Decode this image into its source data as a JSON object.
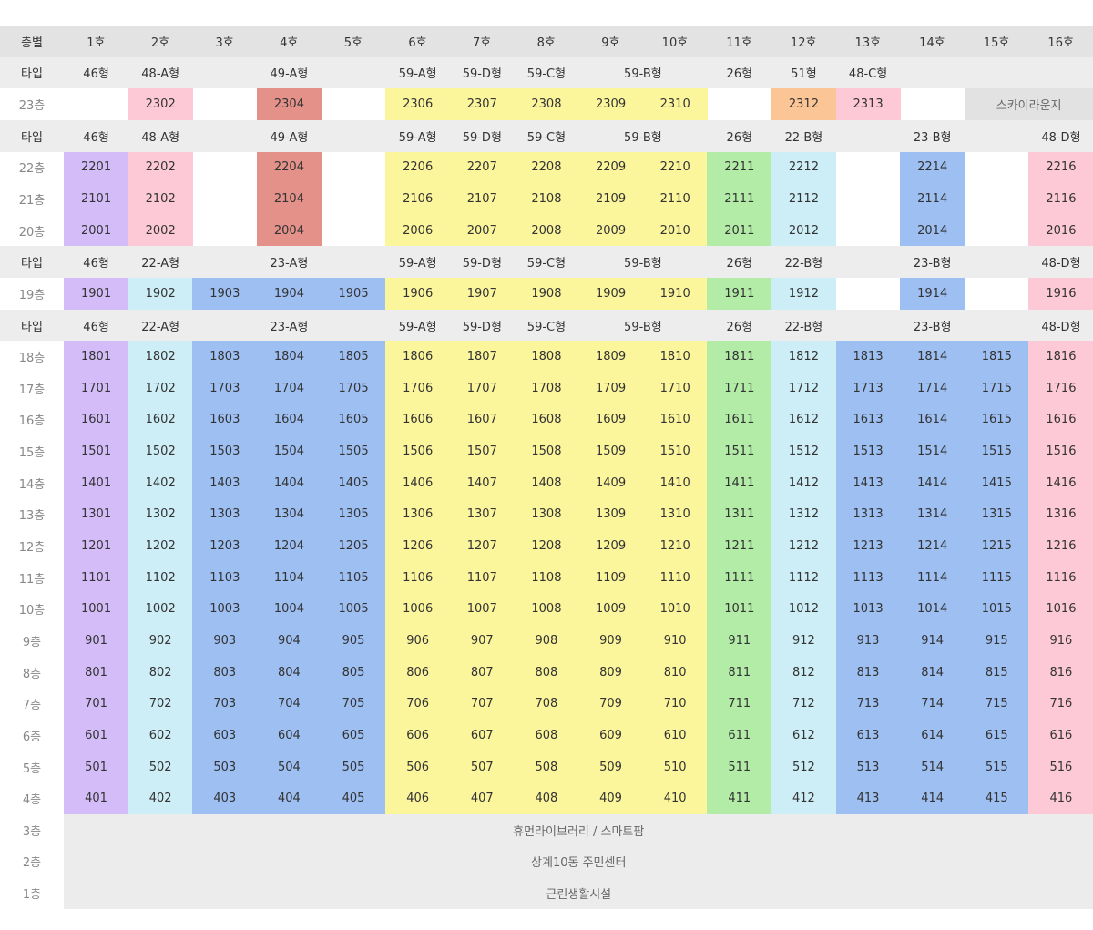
{
  "header": {
    "label": "층별",
    "columns": [
      "1호",
      "2호",
      "3호",
      "4호",
      "5호",
      "6호",
      "7호",
      "8호",
      "9호",
      "10호",
      "11호",
      "12호",
      "13호",
      "14호",
      "15호",
      "16호"
    ]
  },
  "rows": [
    {
      "kind": "type",
      "label": "타입",
      "cells": [
        "46형",
        "48-A형",
        {
          "text": "49-A형",
          "span": 3
        },
        "59-A형",
        "59-D형",
        "59-C형",
        {
          "text": "59-B형",
          "span": 2
        },
        "26형",
        "51형",
        "48-C형",
        null,
        null,
        null
      ]
    },
    {
      "kind": "floor",
      "label": "23층",
      "cells": [
        null,
        "2302",
        null,
        "2304",
        null,
        "2306",
        "2307",
        "2308",
        "2309",
        "2310",
        null,
        "2312",
        "2313",
        null,
        {
          "text": "스카이라운지",
          "span": 2
        }
      ],
      "colors": [
        null,
        "#fdc9d7",
        null,
        "#e4918a",
        null,
        "#fbf59c",
        "#fbf59c",
        "#fbf59c",
        "#fbf59c",
        "#fbf59c",
        null,
        "#fcc596",
        "#fdc9d7",
        null,
        "#e2e2e2"
      ]
    },
    {
      "kind": "type",
      "label": "타입",
      "cells": [
        "46형",
        "48-A형",
        {
          "text": "49-A형",
          "span": 3
        },
        "59-A형",
        "59-D형",
        "59-C형",
        {
          "text": "59-B형",
          "span": 2
        },
        "26형",
        "22-B형",
        {
          "text": "23-B형",
          "span": 3
        },
        "48-D형"
      ]
    },
    {
      "kind": "floor",
      "label": "22층",
      "cells": [
        "2201",
        "2202",
        null,
        "2204",
        null,
        "2206",
        "2207",
        "2208",
        "2209",
        "2210",
        "2211",
        "2212",
        null,
        "2214",
        null,
        "2216"
      ],
      "colors": [
        "#d4bcf9",
        "#fdc9d7",
        null,
        "#e4918a",
        null,
        "#fbf59c",
        "#fbf59c",
        "#fbf59c",
        "#fbf59c",
        "#fbf59c",
        "#b2eca6",
        "#cdeef6",
        null,
        "#9dbff2",
        null,
        "#fdc9d7"
      ]
    },
    {
      "kind": "floor",
      "label": "21층",
      "cells": [
        "2101",
        "2102",
        null,
        "2104",
        null,
        "2106",
        "2107",
        "2108",
        "2109",
        "2110",
        "2111",
        "2112",
        null,
        "2114",
        null,
        "2116"
      ],
      "colors": [
        "#d4bcf9",
        "#fdc9d7",
        null,
        "#e4918a",
        null,
        "#fbf59c",
        "#fbf59c",
        "#fbf59c",
        "#fbf59c",
        "#fbf59c",
        "#b2eca6",
        "#cdeef6",
        null,
        "#9dbff2",
        null,
        "#fdc9d7"
      ]
    },
    {
      "kind": "floor",
      "label": "20층",
      "cells": [
        "2001",
        "2002",
        null,
        "2004",
        null,
        "2006",
        "2007",
        "2008",
        "2009",
        "2010",
        "2011",
        "2012",
        null,
        "2014",
        null,
        "2016"
      ],
      "colors": [
        "#d4bcf9",
        "#fdc9d7",
        null,
        "#e4918a",
        null,
        "#fbf59c",
        "#fbf59c",
        "#fbf59c",
        "#fbf59c",
        "#fbf59c",
        "#b2eca6",
        "#cdeef6",
        null,
        "#9dbff2",
        null,
        "#fdc9d7"
      ]
    },
    {
      "kind": "type",
      "label": "타입",
      "cells": [
        "46형",
        "22-A형",
        {
          "text": "23-A형",
          "span": 3
        },
        "59-A형",
        "59-D형",
        "59-C형",
        {
          "text": "59-B형",
          "span": 2
        },
        "26형",
        "22-B형",
        {
          "text": "23-B형",
          "span": 3
        },
        "48-D형"
      ]
    },
    {
      "kind": "floor",
      "label": "19층",
      "cells": [
        "1901",
        "1902",
        "1903",
        "1904",
        "1905",
        "1906",
        "1907",
        "1908",
        "1909",
        "1910",
        "1911",
        "1912",
        null,
        "1914",
        null,
        "1916"
      ],
      "colors": [
        "#d4bcf9",
        "#cdeef6",
        "#9dbff2",
        "#9dbff2",
        "#9dbff2",
        "#fbf59c",
        "#fbf59c",
        "#fbf59c",
        "#fbf59c",
        "#fbf59c",
        "#b2eca6",
        "#cdeef6",
        null,
        "#9dbff2",
        null,
        "#fdc9d7"
      ]
    },
    {
      "kind": "type",
      "label": "타입",
      "cells": [
        "46형",
        "22-A형",
        {
          "text": "23-A형",
          "span": 3
        },
        "59-A형",
        "59-D형",
        "59-C형",
        {
          "text": "59-B형",
          "span": 2
        },
        "26형",
        "22-B형",
        {
          "text": "23-B형",
          "span": 3
        },
        "48-D형"
      ]
    },
    {
      "kind": "floor",
      "label": "18층",
      "cells": [
        "1801",
        "1802",
        "1803",
        "1804",
        "1805",
        "1806",
        "1807",
        "1808",
        "1809",
        "1810",
        "1811",
        "1812",
        "1813",
        "1814",
        "1815",
        "1816"
      ],
      "colors": [
        "#d4bcf9",
        "#cdeef6",
        "#9dbff2",
        "#9dbff2",
        "#9dbff2",
        "#fbf59c",
        "#fbf59c",
        "#fbf59c",
        "#fbf59c",
        "#fbf59c",
        "#b2eca6",
        "#cdeef6",
        "#9dbff2",
        "#9dbff2",
        "#9dbff2",
        "#fdc9d7"
      ]
    },
    {
      "kind": "floor",
      "label": "17층",
      "cells": [
        "1701",
        "1702",
        "1703",
        "1704",
        "1705",
        "1706",
        "1707",
        "1708",
        "1709",
        "1710",
        "1711",
        "1712",
        "1713",
        "1714",
        "1715",
        "1716"
      ],
      "colors": [
        "#d4bcf9",
        "#cdeef6",
        "#9dbff2",
        "#9dbff2",
        "#9dbff2",
        "#fbf59c",
        "#fbf59c",
        "#fbf59c",
        "#fbf59c",
        "#fbf59c",
        "#b2eca6",
        "#cdeef6",
        "#9dbff2",
        "#9dbff2",
        "#9dbff2",
        "#fdc9d7"
      ]
    },
    {
      "kind": "floor",
      "label": "16층",
      "cells": [
        "1601",
        "1602",
        "1603",
        "1604",
        "1605",
        "1606",
        "1607",
        "1608",
        "1609",
        "1610",
        "1611",
        "1612",
        "1613",
        "1614",
        "1615",
        "1616"
      ],
      "colors": [
        "#d4bcf9",
        "#cdeef6",
        "#9dbff2",
        "#9dbff2",
        "#9dbff2",
        "#fbf59c",
        "#fbf59c",
        "#fbf59c",
        "#fbf59c",
        "#fbf59c",
        "#b2eca6",
        "#cdeef6",
        "#9dbff2",
        "#9dbff2",
        "#9dbff2",
        "#fdc9d7"
      ]
    },
    {
      "kind": "floor",
      "label": "15층",
      "cells": [
        "1501",
        "1502",
        "1503",
        "1504",
        "1505",
        "1506",
        "1507",
        "1508",
        "1509",
        "1510",
        "1511",
        "1512",
        "1513",
        "1514",
        "1515",
        "1516"
      ],
      "colors": [
        "#d4bcf9",
        "#cdeef6",
        "#9dbff2",
        "#9dbff2",
        "#9dbff2",
        "#fbf59c",
        "#fbf59c",
        "#fbf59c",
        "#fbf59c",
        "#fbf59c",
        "#b2eca6",
        "#cdeef6",
        "#9dbff2",
        "#9dbff2",
        "#9dbff2",
        "#fdc9d7"
      ]
    },
    {
      "kind": "floor",
      "label": "14층",
      "cells": [
        "1401",
        "1402",
        "1403",
        "1404",
        "1405",
        "1406",
        "1407",
        "1408",
        "1409",
        "1410",
        "1411",
        "1412",
        "1413",
        "1414",
        "1415",
        "1416"
      ],
      "colors": [
        "#d4bcf9",
        "#cdeef6",
        "#9dbff2",
        "#9dbff2",
        "#9dbff2",
        "#fbf59c",
        "#fbf59c",
        "#fbf59c",
        "#fbf59c",
        "#fbf59c",
        "#b2eca6",
        "#cdeef6",
        "#9dbff2",
        "#9dbff2",
        "#9dbff2",
        "#fdc9d7"
      ]
    },
    {
      "kind": "floor",
      "label": "13층",
      "cells": [
        "1301",
        "1302",
        "1303",
        "1304",
        "1305",
        "1306",
        "1307",
        "1308",
        "1309",
        "1310",
        "1311",
        "1312",
        "1313",
        "1314",
        "1315",
        "1316"
      ],
      "colors": [
        "#d4bcf9",
        "#cdeef6",
        "#9dbff2",
        "#9dbff2",
        "#9dbff2",
        "#fbf59c",
        "#fbf59c",
        "#fbf59c",
        "#fbf59c",
        "#fbf59c",
        "#b2eca6",
        "#cdeef6",
        "#9dbff2",
        "#9dbff2",
        "#9dbff2",
        "#fdc9d7"
      ]
    },
    {
      "kind": "floor",
      "label": "12층",
      "cells": [
        "1201",
        "1202",
        "1203",
        "1204",
        "1205",
        "1206",
        "1207",
        "1208",
        "1209",
        "1210",
        "1211",
        "1212",
        "1213",
        "1214",
        "1215",
        "1216"
      ],
      "colors": [
        "#d4bcf9",
        "#cdeef6",
        "#9dbff2",
        "#9dbff2",
        "#9dbff2",
        "#fbf59c",
        "#fbf59c",
        "#fbf59c",
        "#fbf59c",
        "#fbf59c",
        "#b2eca6",
        "#cdeef6",
        "#9dbff2",
        "#9dbff2",
        "#9dbff2",
        "#fdc9d7"
      ]
    },
    {
      "kind": "floor",
      "label": "11층",
      "cells": [
        "1101",
        "1102",
        "1103",
        "1104",
        "1105",
        "1106",
        "1107",
        "1108",
        "1109",
        "1110",
        "1111",
        "1112",
        "1113",
        "1114",
        "1115",
        "1116"
      ],
      "colors": [
        "#d4bcf9",
        "#cdeef6",
        "#9dbff2",
        "#9dbff2",
        "#9dbff2",
        "#fbf59c",
        "#fbf59c",
        "#fbf59c",
        "#fbf59c",
        "#fbf59c",
        "#b2eca6",
        "#cdeef6",
        "#9dbff2",
        "#9dbff2",
        "#9dbff2",
        "#fdc9d7"
      ]
    },
    {
      "kind": "floor",
      "label": "10층",
      "cells": [
        "1001",
        "1002",
        "1003",
        "1004",
        "1005",
        "1006",
        "1007",
        "1008",
        "1009",
        "1010",
        "1011",
        "1012",
        "1013",
        "1014",
        "1015",
        "1016"
      ],
      "colors": [
        "#d4bcf9",
        "#cdeef6",
        "#9dbff2",
        "#9dbff2",
        "#9dbff2",
        "#fbf59c",
        "#fbf59c",
        "#fbf59c",
        "#fbf59c",
        "#fbf59c",
        "#b2eca6",
        "#cdeef6",
        "#9dbff2",
        "#9dbff2",
        "#9dbff2",
        "#fdc9d7"
      ]
    },
    {
      "kind": "floor",
      "label": "9층",
      "cells": [
        "901",
        "902",
        "903",
        "904",
        "905",
        "906",
        "907",
        "908",
        "909",
        "910",
        "911",
        "912",
        "913",
        "914",
        "915",
        "916"
      ],
      "colors": [
        "#d4bcf9",
        "#cdeef6",
        "#9dbff2",
        "#9dbff2",
        "#9dbff2",
        "#fbf59c",
        "#fbf59c",
        "#fbf59c",
        "#fbf59c",
        "#fbf59c",
        "#b2eca6",
        "#cdeef6",
        "#9dbff2",
        "#9dbff2",
        "#9dbff2",
        "#fdc9d7"
      ]
    },
    {
      "kind": "floor",
      "label": "8층",
      "cells": [
        "801",
        "802",
        "803",
        "804",
        "805",
        "806",
        "807",
        "808",
        "809",
        "810",
        "811",
        "812",
        "813",
        "814",
        "815",
        "816"
      ],
      "colors": [
        "#d4bcf9",
        "#cdeef6",
        "#9dbff2",
        "#9dbff2",
        "#9dbff2",
        "#fbf59c",
        "#fbf59c",
        "#fbf59c",
        "#fbf59c",
        "#fbf59c",
        "#b2eca6",
        "#cdeef6",
        "#9dbff2",
        "#9dbff2",
        "#9dbff2",
        "#fdc9d7"
      ]
    },
    {
      "kind": "floor",
      "label": "7층",
      "cells": [
        "701",
        "702",
        "703",
        "704",
        "705",
        "706",
        "707",
        "708",
        "709",
        "710",
        "711",
        "712",
        "713",
        "714",
        "715",
        "716"
      ],
      "colors": [
        "#d4bcf9",
        "#cdeef6",
        "#9dbff2",
        "#9dbff2",
        "#9dbff2",
        "#fbf59c",
        "#fbf59c",
        "#fbf59c",
        "#fbf59c",
        "#fbf59c",
        "#b2eca6",
        "#cdeef6",
        "#9dbff2",
        "#9dbff2",
        "#9dbff2",
        "#fdc9d7"
      ]
    },
    {
      "kind": "floor",
      "label": "6층",
      "cells": [
        "601",
        "602",
        "603",
        "604",
        "605",
        "606",
        "607",
        "608",
        "609",
        "610",
        "611",
        "612",
        "613",
        "614",
        "615",
        "616"
      ],
      "colors": [
        "#d4bcf9",
        "#cdeef6",
        "#9dbff2",
        "#9dbff2",
        "#9dbff2",
        "#fbf59c",
        "#fbf59c",
        "#fbf59c",
        "#fbf59c",
        "#fbf59c",
        "#b2eca6",
        "#cdeef6",
        "#9dbff2",
        "#9dbff2",
        "#9dbff2",
        "#fdc9d7"
      ]
    },
    {
      "kind": "floor",
      "label": "5층",
      "cells": [
        "501",
        "502",
        "503",
        "504",
        "505",
        "506",
        "507",
        "508",
        "509",
        "510",
        "511",
        "512",
        "513",
        "514",
        "515",
        "516"
      ],
      "colors": [
        "#d4bcf9",
        "#cdeef6",
        "#9dbff2",
        "#9dbff2",
        "#9dbff2",
        "#fbf59c",
        "#fbf59c",
        "#fbf59c",
        "#fbf59c",
        "#fbf59c",
        "#b2eca6",
        "#cdeef6",
        "#9dbff2",
        "#9dbff2",
        "#9dbff2",
        "#fdc9d7"
      ]
    },
    {
      "kind": "floor",
      "label": "4층",
      "cells": [
        "401",
        "402",
        "403",
        "404",
        "405",
        "406",
        "407",
        "408",
        "409",
        "410",
        "411",
        "412",
        "413",
        "414",
        "415",
        "416"
      ],
      "colors": [
        "#d4bcf9",
        "#cdeef6",
        "#9dbff2",
        "#9dbff2",
        "#9dbff2",
        "#fbf59c",
        "#fbf59c",
        "#fbf59c",
        "#fbf59c",
        "#fbf59c",
        "#b2eca6",
        "#cdeef6",
        "#9dbff2",
        "#9dbff2",
        "#9dbff2",
        "#fdc9d7"
      ]
    },
    {
      "kind": "floor",
      "label": "3층",
      "cells": [
        {
          "text": "휴먼라이브러리 / 스마트팜",
          "span": 16
        }
      ],
      "colors": [
        "#ececec"
      ]
    },
    {
      "kind": "floor",
      "label": "2층",
      "cells": [
        {
          "text": "상계10동 주민센터",
          "span": 16
        }
      ],
      "colors": [
        "#ececec"
      ]
    },
    {
      "kind": "floor",
      "label": "1층",
      "cells": [
        {
          "text": "근린생활시설",
          "span": 16
        }
      ],
      "colors": [
        "#ececec"
      ]
    }
  ]
}
